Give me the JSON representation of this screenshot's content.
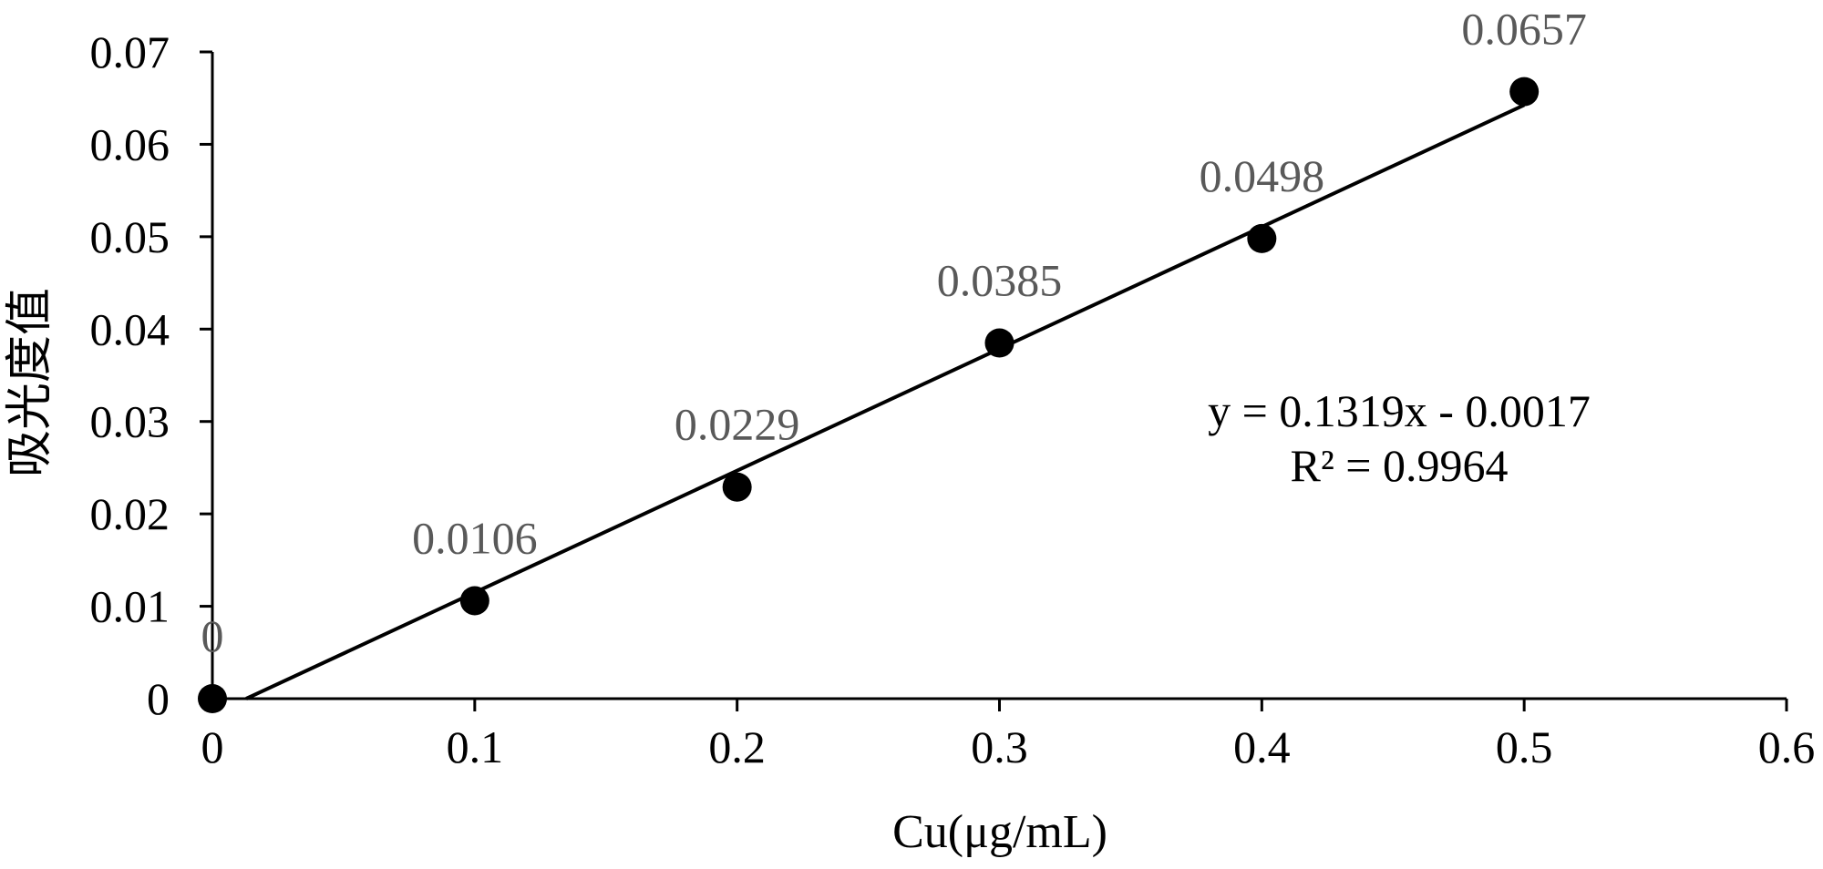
{
  "chart_data": {
    "type": "scatter",
    "title": "",
    "xlabel": "Cu(μg/mL)",
    "ylabel": "吸光度值",
    "xlim": [
      0,
      0.6
    ],
    "ylim": [
      0,
      0.07
    ],
    "x_ticks": [
      0,
      0.1,
      0.2,
      0.3,
      0.4,
      0.5,
      0.6
    ],
    "x_tick_labels": [
      "0",
      "0.1",
      "0.2",
      "0.3",
      "0.4",
      "0.5",
      "0.6"
    ],
    "y_ticks": [
      0,
      0.01,
      0.02,
      0.03,
      0.04,
      0.05,
      0.06,
      0.07
    ],
    "y_tick_labels": [
      "0",
      "0.01",
      "0.02",
      "0.03",
      "0.04",
      "0.05",
      "0.06",
      "0.07"
    ],
    "grid": false,
    "legend": "none",
    "series": [
      {
        "x": [
          0,
          0.1,
          0.2,
          0.3,
          0.4,
          0.5
        ],
        "y": [
          0,
          0.0106,
          0.0229,
          0.0385,
          0.0498,
          0.0657
        ],
        "labels": [
          "0",
          "0.0106",
          "0.0229",
          "0.0385",
          "0.0498",
          "0.0657"
        ],
        "marker_color": "#000000"
      }
    ],
    "trendline": {
      "type": "linear",
      "slope": 0.1319,
      "intercept": -0.0017,
      "color": "#000000",
      "equation": "y = 0.1319x - 0.0017",
      "r_squared": "R² = 0.9964"
    },
    "label_color": "#595959"
  }
}
